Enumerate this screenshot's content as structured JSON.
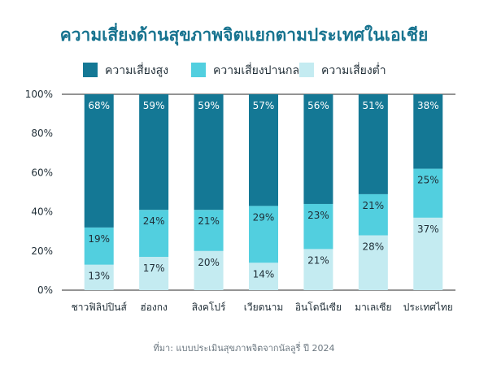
{
  "chart_data": {
    "type": "bar",
    "stacked": true,
    "title": "ความเสี่ยงด้านสุขภาพจิตแยกตามประเทศในเอเชีย",
    "source": "ที่มา: แบบประเมินสุขภาพจิตจากนัลลูรี่ ปี 2024",
    "categories": [
      "ชาวฟิลิปปินส์",
      "ฮ่องกง",
      "สิงคโปร์",
      "เวียดนาม",
      "อินโดนีเซีย",
      "มาเลเซีย",
      "ประเทศไทย"
    ],
    "series": [
      {
        "name": "ความเสี่ยงต่ำ",
        "values": [
          13,
          17,
          20,
          14,
          21,
          28,
          37
        ],
        "color": "#c4ebf1",
        "label_color": "#1f2d36"
      },
      {
        "name": "ความเสี่ยงปานกลาง",
        "values": [
          19,
          24,
          21,
          29,
          23,
          21,
          25
        ],
        "color": "#52cfdf",
        "label_color": "#1f2d36"
      },
      {
        "name": "ความเสี่ยงสูง",
        "values": [
          68,
          59,
          59,
          57,
          56,
          51,
          38
        ],
        "color": "#147895",
        "label_color": "#ffffff"
      }
    ],
    "legend_order": [
      "ความเสี่ยงสูง",
      "ความเสี่ยงปานกลาง",
      "ความเสี่ยงต่ำ"
    ],
    "legend_position": "top",
    "yticks": [
      "0%",
      "20%",
      "40%",
      "60%",
      "80%",
      "100%"
    ],
    "ylim": [
      0,
      100
    ],
    "value_suffix": "%",
    "title_color": "#17738f",
    "grid": false
  }
}
